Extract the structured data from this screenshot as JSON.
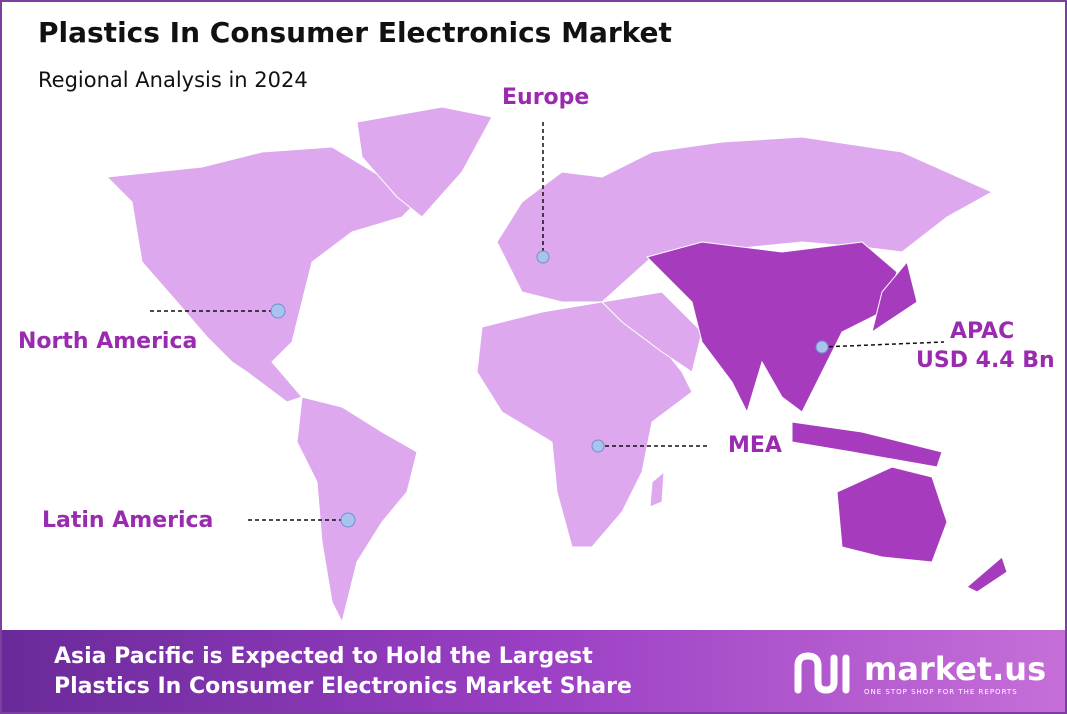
{
  "header": {
    "title": "Plastics In Consumer Electronics Market",
    "subtitle": "Regional Analysis in 2024"
  },
  "regions": [
    {
      "label": "Europe"
    },
    {
      "label": "North America"
    },
    {
      "label": "APAC",
      "value": "USD 4.4 Bn"
    },
    {
      "label": "MEA"
    },
    {
      "label": "Latin America"
    }
  ],
  "footer": {
    "lines": [
      "Asia Pacific is Expected to Hold the Largest",
      "Plastics In Consumer Electronics Market Share"
    ],
    "brand": "market.us",
    "tagline": "ONE STOP SHOP FOR THE REPORTS"
  }
}
